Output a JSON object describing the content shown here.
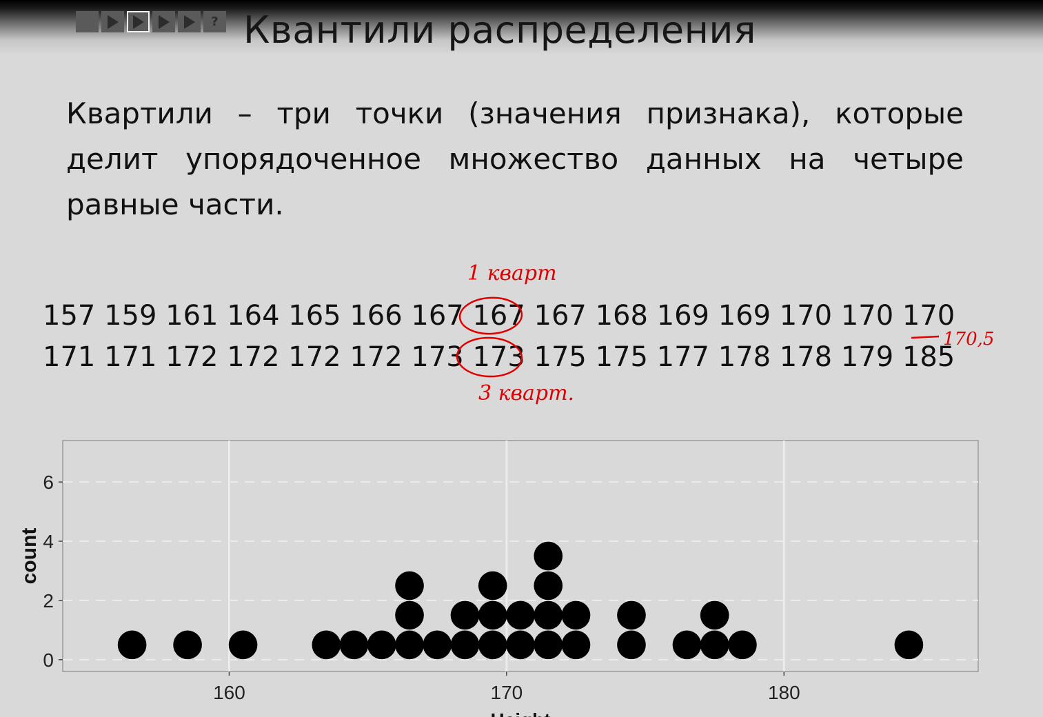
{
  "controls": {
    "buttons": [
      {
        "icon": "stop-icon"
      },
      {
        "icon": "play-icon"
      },
      {
        "icon": "play-icon"
      },
      {
        "icon": "play-icon"
      },
      {
        "icon": "play-icon"
      },
      {
        "icon": "help-icon",
        "label": "?"
      }
    ]
  },
  "slide": {
    "title": "Квантили распределения",
    "definition": "Квартили – три точки (значения признака), которые делит упорядоченное множество данных на четыре равные части.",
    "series_row1": "157 159 161 164 165 166 167 167 167 168 169 169 170 170 170",
    "series_row2": "171 171 172 172 172 172 173 173 175 175 177 178 178 179 185"
  },
  "annotations": {
    "q1_label": "1 кварт",
    "q3_label": "3 кварт.",
    "median_label": "170,5",
    "color": "#e00000"
  },
  "chart_data": {
    "type": "scatter",
    "subtype": "dotplot",
    "xlabel": "Height",
    "ylabel": "count",
    "xlim": [
      154,
      187
    ],
    "ylim": [
      -0.4,
      7.4
    ],
    "xticks": [
      160,
      170,
      180
    ],
    "yticks": [
      0,
      2,
      4,
      6
    ],
    "grid": true,
    "values": [
      157,
      159,
      161,
      164,
      165,
      166,
      167,
      167,
      167,
      168,
      169,
      169,
      170,
      170,
      170,
      171,
      171,
      172,
      172,
      172,
      172,
      173,
      173,
      175,
      175,
      177,
      178,
      178,
      179,
      185
    ],
    "dot_color": "#000000"
  }
}
